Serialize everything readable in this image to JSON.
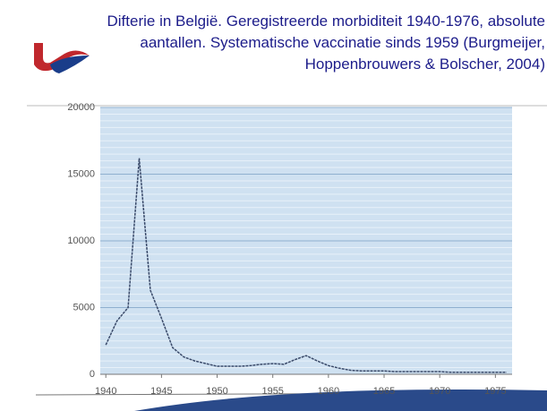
{
  "chart_data": {
    "type": "line",
    "title": "Difterie in België. Geregistreerde morbiditeit 1940-1976, absolute aantallen. Systematische vaccinatie sinds 1959 (Burgmeijer, Hoppenbrouwers & Bolscher, 2004)",
    "x": [
      1940,
      1941,
      1942,
      1943,
      1944,
      1945,
      1946,
      1947,
      1948,
      1949,
      1950,
      1951,
      1952,
      1953,
      1954,
      1955,
      1956,
      1957,
      1958,
      1959,
      1960,
      1961,
      1962,
      1963,
      1964,
      1965,
      1966,
      1967,
      1968,
      1969,
      1970,
      1971,
      1972,
      1973,
      1974,
      1975,
      1976
    ],
    "series": [
      {
        "name": "Difterie",
        "color": "#3a4a6a",
        "values": [
          2200,
          4000,
          5000,
          16200,
          6300,
          4200,
          2000,
          1300,
          1000,
          800,
          600,
          600,
          600,
          650,
          750,
          800,
          750,
          1100,
          1400,
          1000,
          650,
          450,
          300,
          250,
          250,
          250,
          200,
          200,
          200,
          200,
          200,
          150,
          150,
          150,
          150,
          150,
          150
        ]
      }
    ],
    "xlim": [
      1939.5,
      1976.5
    ],
    "xticks": [
      1940,
      1945,
      1950,
      1955,
      1960,
      1965,
      1970,
      1975
    ],
    "ylim": [
      0,
      20000
    ],
    "yticks": [
      0,
      5000,
      10000,
      15000,
      20000
    ],
    "grid": true
  }
}
